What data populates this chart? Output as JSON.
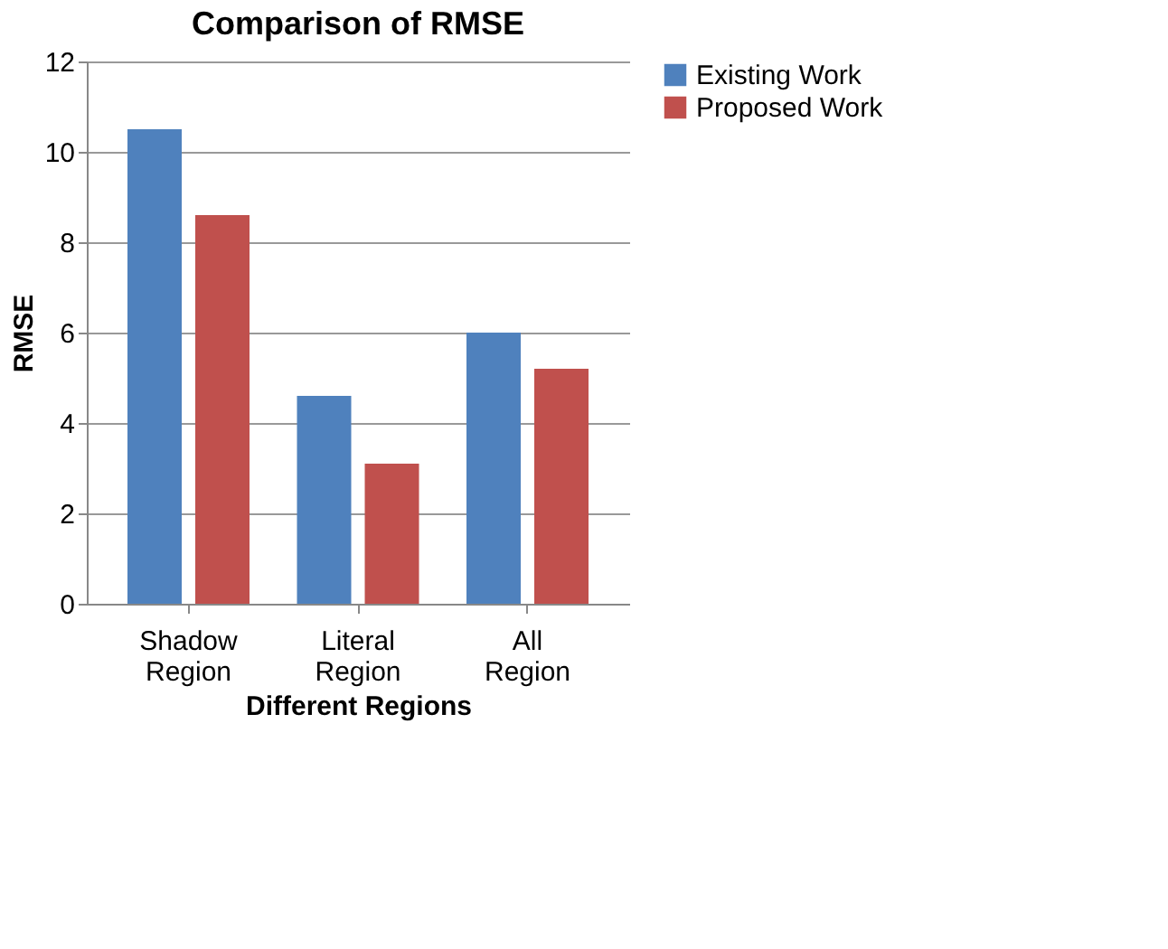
{
  "chart_data": {
    "type": "bar",
    "title": "Comparison of RMSE",
    "xlabel": "Different Regions",
    "ylabel": "RMSE",
    "categories": [
      "Shadow Region",
      "Literal Region",
      "All Region"
    ],
    "series": [
      {
        "name": "Existing Work",
        "color": "#4f81bd",
        "values": [
          10.5,
          4.6,
          6.0
        ]
      },
      {
        "name": "Proposed Work",
        "color": "#c0504d",
        "values": [
          8.6,
          3.1,
          5.2
        ]
      }
    ],
    "ylim": [
      0,
      12
    ],
    "yticks": [
      0,
      2,
      4,
      6,
      8,
      10,
      12
    ],
    "grid": "y",
    "legend": "right"
  }
}
